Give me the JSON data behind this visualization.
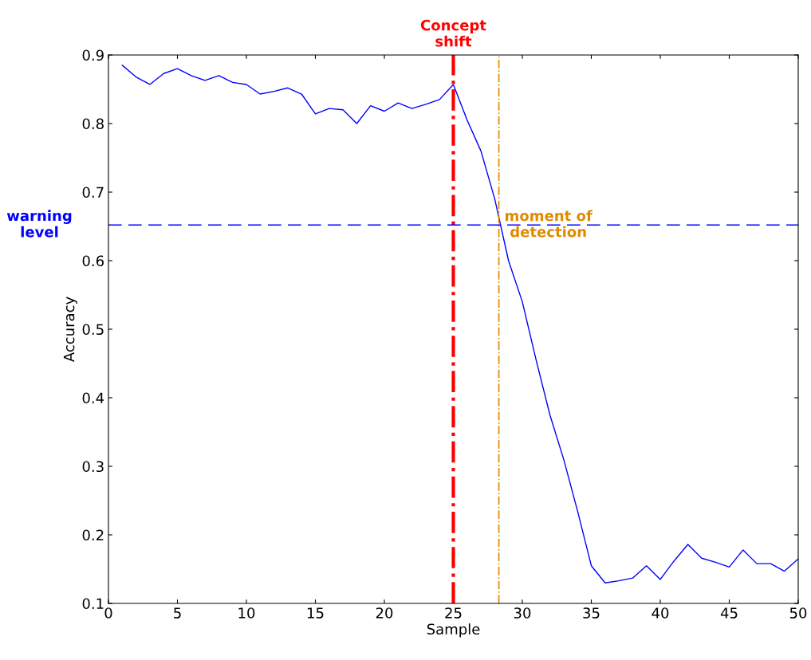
{
  "chart_data": {
    "type": "line",
    "xlabel": "Sample",
    "ylabel": "Accuracy",
    "x": [
      1,
      2,
      3,
      4,
      5,
      6,
      7,
      8,
      9,
      10,
      11,
      12,
      13,
      14,
      15,
      16,
      17,
      18,
      19,
      20,
      21,
      22,
      23,
      24,
      25,
      26,
      27,
      28,
      29,
      30,
      31,
      32,
      33,
      34,
      35,
      36,
      37,
      38,
      39,
      40,
      41,
      42,
      43,
      44,
      45,
      46,
      47,
      48,
      49,
      50
    ],
    "series": [
      {
        "color": "#0000ff",
        "values": [
          0.885,
          0.868,
          0.857,
          0.873,
          0.88,
          0.87,
          0.863,
          0.87,
          0.86,
          0.857,
          0.843,
          0.847,
          0.852,
          0.843,
          0.814,
          0.822,
          0.82,
          0.8,
          0.826,
          0.818,
          0.83,
          0.822,
          0.828,
          0.835,
          0.857,
          0.805,
          0.76,
          0.69,
          0.6,
          0.54,
          0.455,
          0.375,
          0.31,
          0.235,
          0.155,
          0.13,
          0.133,
          0.137,
          0.155,
          0.135,
          0.162,
          0.186,
          0.166,
          0.16,
          0.153,
          0.178,
          0.158,
          0.158,
          0.147,
          0.165
        ]
      }
    ],
    "xlim": [
      0,
      50
    ],
    "xticks": [
      0,
      5,
      10,
      15,
      20,
      25,
      30,
      35,
      40,
      45,
      50
    ],
    "ylim": [
      0.1,
      0.9
    ],
    "yticks": [
      0.1,
      0.2,
      0.3,
      0.4,
      0.5,
      0.6,
      0.7,
      0.8,
      0.9
    ],
    "ref_lines": [
      {
        "axis": "x",
        "value": 25,
        "label": "Concept\nshift",
        "color": "#ff0000",
        "line_style": "dashdot"
      },
      {
        "axis": "x",
        "value": 28.3,
        "label": "moment of\ndetection",
        "color": "#e08a00",
        "line_style": "dashdot"
      },
      {
        "axis": "y",
        "value": 0.652,
        "label": "warning\nlevel",
        "color": "#0000ff",
        "line_style": "dashed"
      }
    ],
    "grid": false,
    "legend": false,
    "marker": "none",
    "line_style": "solid"
  }
}
